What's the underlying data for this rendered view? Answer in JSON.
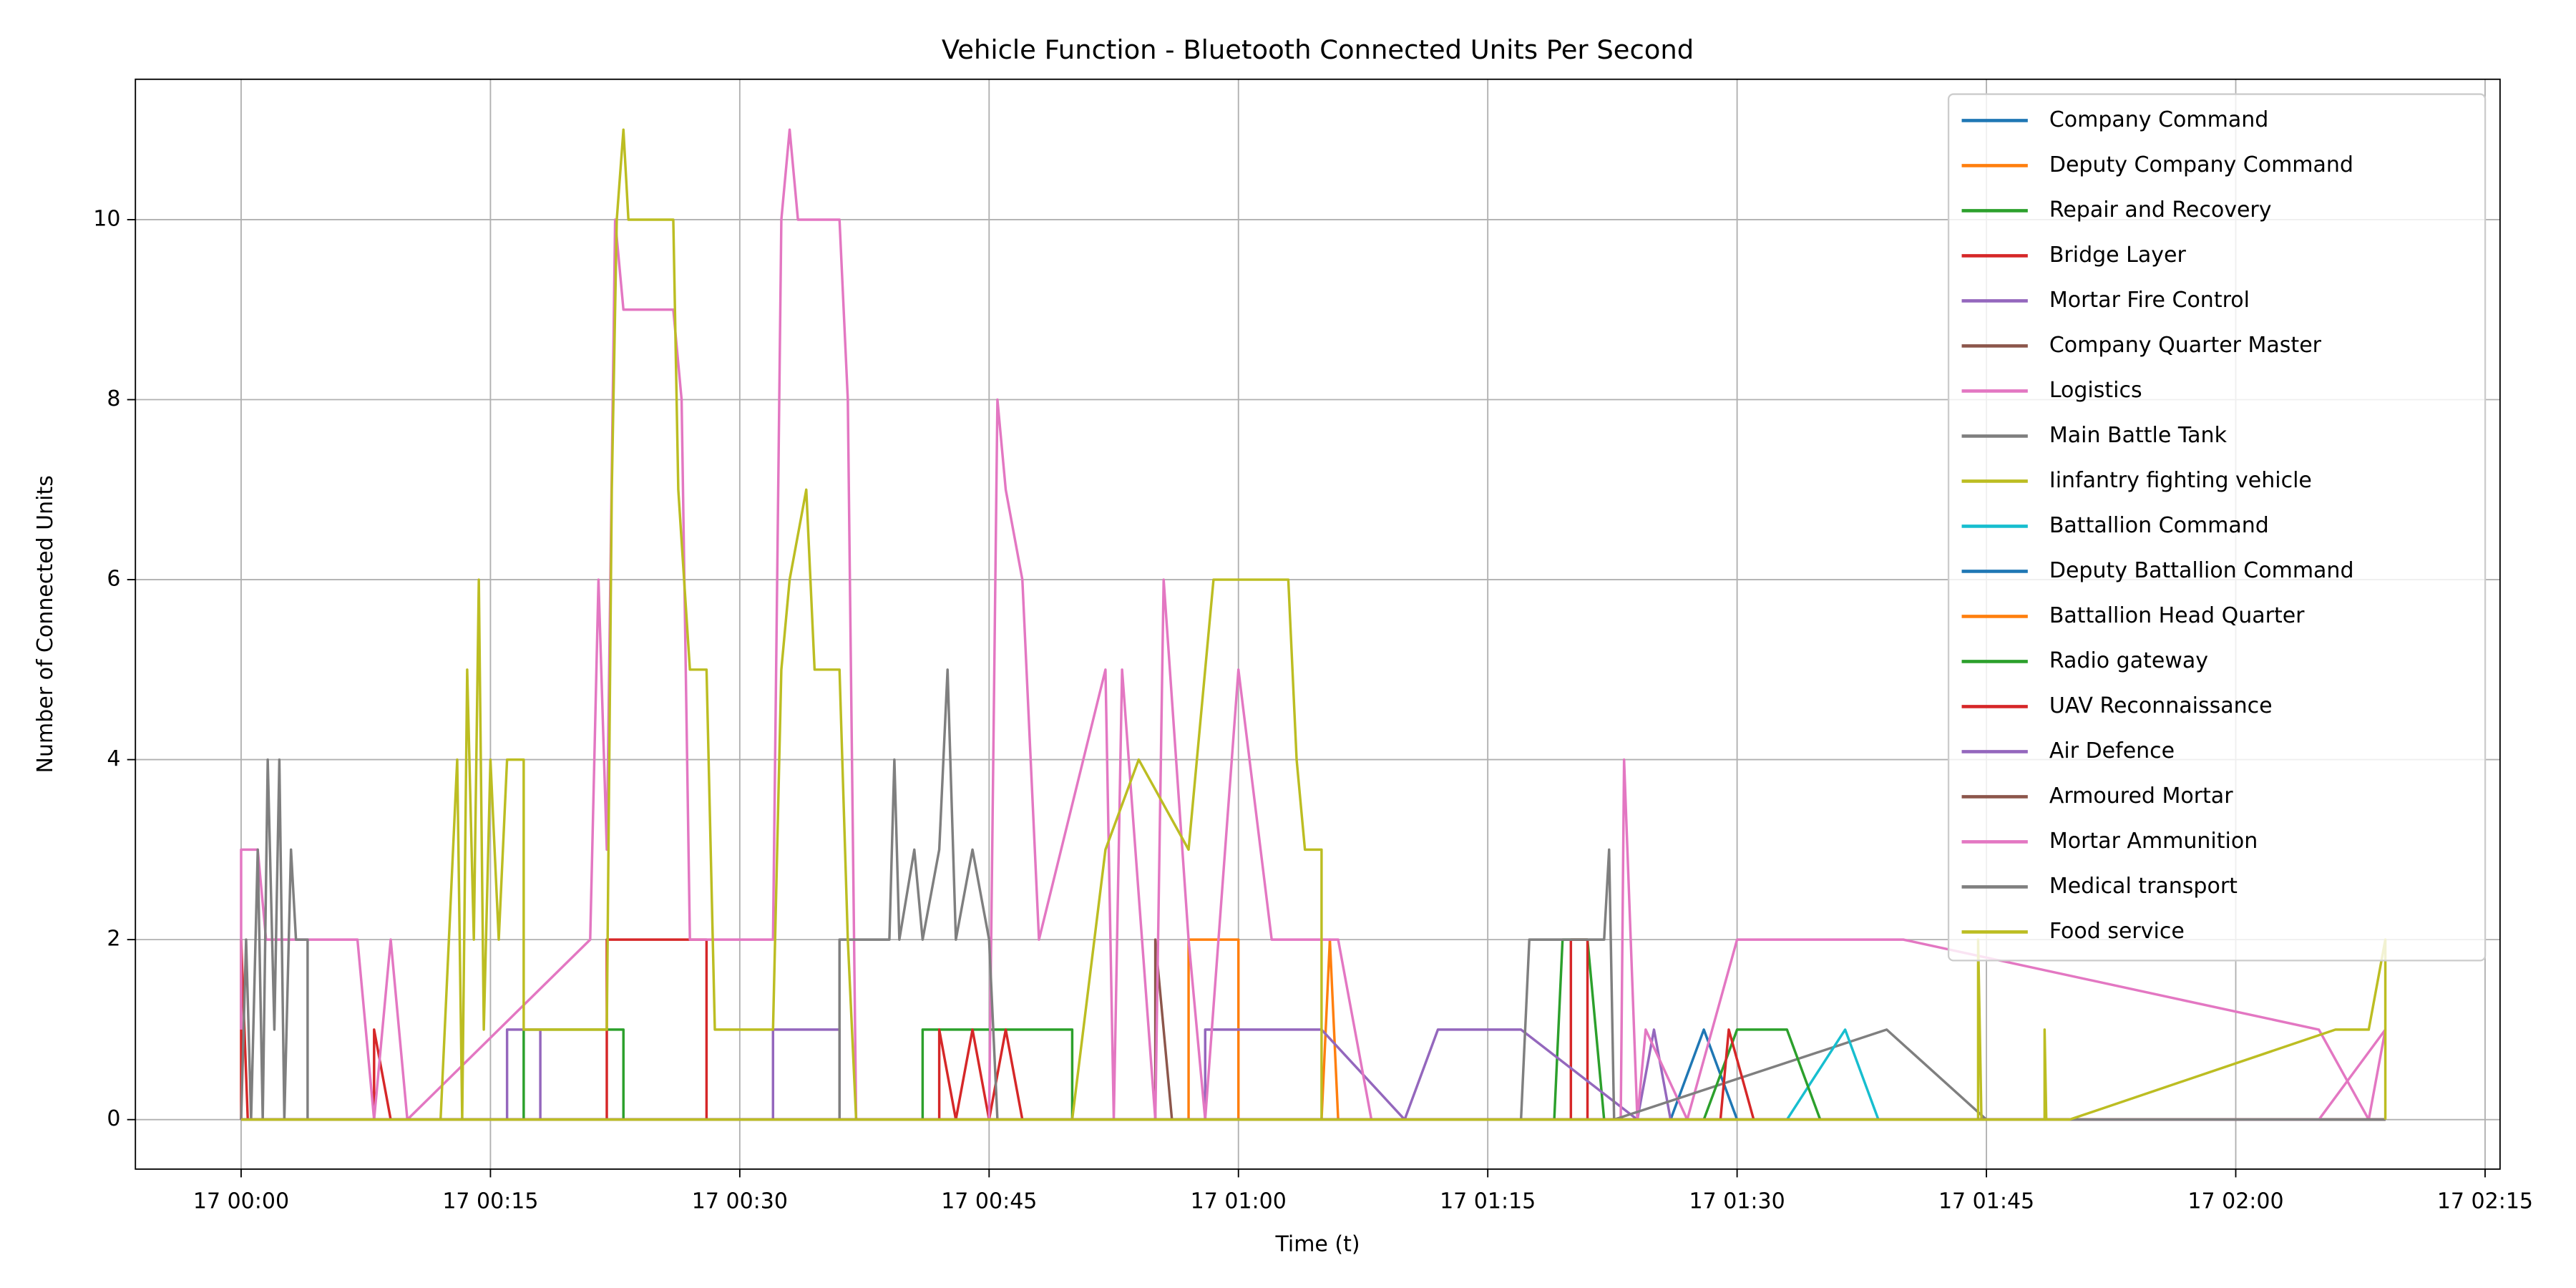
{
  "chart_data": {
    "type": "line",
    "title": "Vehicle Function - Bluetooth Connected Units Per Second",
    "xlabel": "Time (t)",
    "ylabel": "Number of Connected Units",
    "xlim": [
      -6.36,
      135.9
    ],
    "ylim": [
      -0.55,
      11.56
    ],
    "xticks": [
      {
        "value": 0,
        "label": "17 00:00"
      },
      {
        "value": 15,
        "label": "17 00:15"
      },
      {
        "value": 30,
        "label": "17 00:30"
      },
      {
        "value": 45,
        "label": "17 00:45"
      },
      {
        "value": 60,
        "label": "17 01:00"
      },
      {
        "value": 75,
        "label": "17 01:15"
      },
      {
        "value": 90,
        "label": "17 01:30"
      },
      {
        "value": 105,
        "label": "17 01:45"
      },
      {
        "value": 120,
        "label": "17 02:00"
      },
      {
        "value": 135,
        "label": "17 02:15"
      }
    ],
    "yticks": [
      0,
      2,
      4,
      6,
      8,
      10
    ],
    "grid": true,
    "legend": "upper right",
    "series": [
      {
        "name": "Company Command",
        "color": "#1f77b4",
        "x": [
          0,
          86,
          88,
          90,
          129
        ],
        "values": [
          0,
          0,
          1,
          0,
          0
        ]
      },
      {
        "name": "Deputy Company Command",
        "color": "#ff7f0e",
        "x": [
          0,
          57,
          57,
          60,
          60,
          65,
          65.5,
          66,
          129
        ],
        "values": [
          0,
          0,
          2,
          2,
          0,
          0,
          2,
          0,
          0
        ]
      },
      {
        "name": "Repair and Recovery",
        "color": "#2ca02c",
        "x": [
          0,
          17,
          17,
          23,
          23,
          41,
          41,
          50,
          50,
          79,
          79.5,
          81,
          82,
          129
        ],
        "values": [
          0,
          0,
          1,
          1,
          0,
          0,
          1,
          1,
          0,
          0,
          2,
          2,
          0,
          0
        ]
      },
      {
        "name": "Bridge Layer",
        "color": "#d62728",
        "x": [
          0,
          0,
          0.2,
          0.4,
          8,
          8,
          9,
          22,
          22,
          28,
          28,
          42,
          42,
          43,
          44,
          45,
          46,
          47,
          80,
          80,
          81,
          81,
          129
        ],
        "values": [
          0,
          2,
          1,
          0,
          0,
          1,
          0,
          0,
          2,
          2,
          0,
          0,
          1,
          0,
          1,
          0,
          1,
          0,
          0,
          2,
          2,
          0,
          0
        ]
      },
      {
        "name": "Mortar Fire Control",
        "color": "#9467bd",
        "x": [
          0,
          16,
          16,
          18,
          18,
          32,
          32,
          36,
          36,
          58,
          58,
          65,
          70,
          72,
          77,
          84,
          85,
          86,
          129
        ],
        "values": [
          0,
          0,
          1,
          1,
          0,
          0,
          1,
          1,
          0,
          0,
          1,
          1,
          0,
          1,
          1,
          0,
          1,
          0,
          0
        ]
      },
      {
        "name": "Company Quarter Master",
        "color": "#8c564b",
        "x": [
          0,
          55,
          55,
          56,
          129
        ],
        "values": [
          0,
          0,
          2,
          0,
          0
        ]
      },
      {
        "name": "Logistics",
        "color": "#e377c2",
        "x": [
          0,
          0,
          1,
          1.5,
          7,
          8,
          9,
          10,
          21,
          21.5,
          22,
          22.5,
          23,
          26,
          26.5,
          27,
          32,
          32.5,
          33,
          33.5,
          36,
          36.5,
          37,
          45,
          45.5,
          46,
          47,
          48,
          52,
          52.5,
          53,
          55,
          55.5,
          57,
          58,
          60,
          62,
          66,
          68,
          83,
          83.2,
          84,
          84.5,
          87,
          90,
          100,
          125,
          128,
          129
        ],
        "values": [
          1,
          3,
          3,
          2,
          2,
          0,
          2,
          0,
          2,
          6,
          3,
          10,
          9,
          9,
          8,
          2,
          2,
          10,
          11,
          10,
          10,
          8,
          0,
          0,
          8,
          7,
          6,
          2,
          5,
          0,
          5,
          0,
          6,
          2,
          0,
          5,
          2,
          2,
          0,
          0,
          4,
          0,
          1,
          0,
          2,
          2,
          1,
          0,
          1
        ]
      },
      {
        "name": "Main Battle Tank",
        "color": "#7f7f7f",
        "x": [
          0,
          0.3,
          0.6,
          1,
          1.3,
          1.6,
          2,
          2.3,
          2.6,
          3,
          3.3,
          4,
          4,
          36,
          36,
          39,
          39.3,
          39.6,
          40.5,
          41,
          42,
          42.5,
          43,
          44,
          45,
          45.5,
          77,
          77.5,
          82,
          82.3,
          82.6,
          99,
          105,
          129
        ],
        "values": [
          0,
          2,
          0,
          3,
          0,
          4,
          1,
          4,
          0,
          3,
          2,
          2,
          0,
          0,
          2,
          2,
          4,
          2,
          3,
          2,
          3,
          5,
          2,
          3,
          2,
          0,
          0,
          2,
          2,
          3,
          0,
          1,
          0,
          0
        ]
      },
      {
        "name": "Iinfantry fighting vehicle",
        "color": "#bcbd22",
        "x": [
          0,
          12,
          12.5,
          13,
          13.3,
          13.6,
          14,
          14.3,
          14.6,
          15,
          15.5,
          16,
          17,
          17,
          22,
          22.3,
          22.6,
          23,
          23.3,
          26,
          26.3,
          27,
          28,
          28.5,
          32,
          32.5,
          33,
          34,
          34.5,
          36,
          36.5,
          37,
          50,
          52,
          54,
          57,
          58,
          58.5,
          63,
          63.5,
          64,
          65,
          65,
          104.5,
          104.5,
          104.7,
          129
        ],
        "values": [
          0,
          0,
          2,
          4,
          0,
          5,
          2,
          6,
          1,
          4,
          2,
          4,
          4,
          1,
          1,
          7,
          10,
          11,
          10,
          10,
          7,
          5,
          5,
          1,
          1,
          5,
          6,
          7,
          5,
          5,
          2,
          0,
          0,
          3,
          4,
          3,
          5,
          6,
          6,
          4,
          3,
          3,
          0,
          0,
          2,
          0,
          0
        ]
      },
      {
        "name": "Battallion Command",
        "color": "#17becf",
        "x": [
          0,
          93,
          96.5,
          98.5,
          129
        ],
        "values": [
          0,
          0,
          1,
          0,
          0
        ]
      },
      {
        "name": "Deputy Battallion Command",
        "color": "#1f77b4",
        "x": [
          0,
          129
        ],
        "values": [
          0,
          0
        ]
      },
      {
        "name": "Battallion Head Quarter",
        "color": "#ff7f0e",
        "x": [
          0,
          129
        ],
        "values": [
          0,
          0
        ]
      },
      {
        "name": "Radio gateway",
        "color": "#2ca02c",
        "x": [
          0,
          88,
          90,
          93,
          95,
          129
        ],
        "values": [
          0,
          0,
          1,
          1,
          0,
          0
        ]
      },
      {
        "name": "UAV Reconnaissance",
        "color": "#d62728",
        "x": [
          0,
          89,
          89.5,
          91,
          129
        ],
        "values": [
          0,
          0,
          1,
          0,
          0
        ]
      },
      {
        "name": "Air Defence",
        "color": "#9467bd",
        "x": [
          0,
          129
        ],
        "values": [
          0,
          0
        ]
      },
      {
        "name": "Armoured Mortar",
        "color": "#8c564b",
        "x": [
          0,
          129
        ],
        "values": [
          0,
          0
        ]
      },
      {
        "name": "Mortar Ammunition",
        "color": "#e377c2",
        "x": [
          0,
          125,
          129
        ],
        "values": [
          0,
          0,
          1
        ]
      },
      {
        "name": "Medical transport",
        "color": "#7f7f7f",
        "x": [
          0,
          129
        ],
        "values": [
          0,
          0
        ]
      },
      {
        "name": "Food service",
        "color": "#bcbd22",
        "x": [
          0,
          108.5,
          108.5,
          108.6,
          110,
          126,
          128,
          129,
          129
        ],
        "values": [
          0,
          0,
          1,
          0,
          0,
          1,
          1,
          2,
          0
        ]
      }
    ]
  }
}
